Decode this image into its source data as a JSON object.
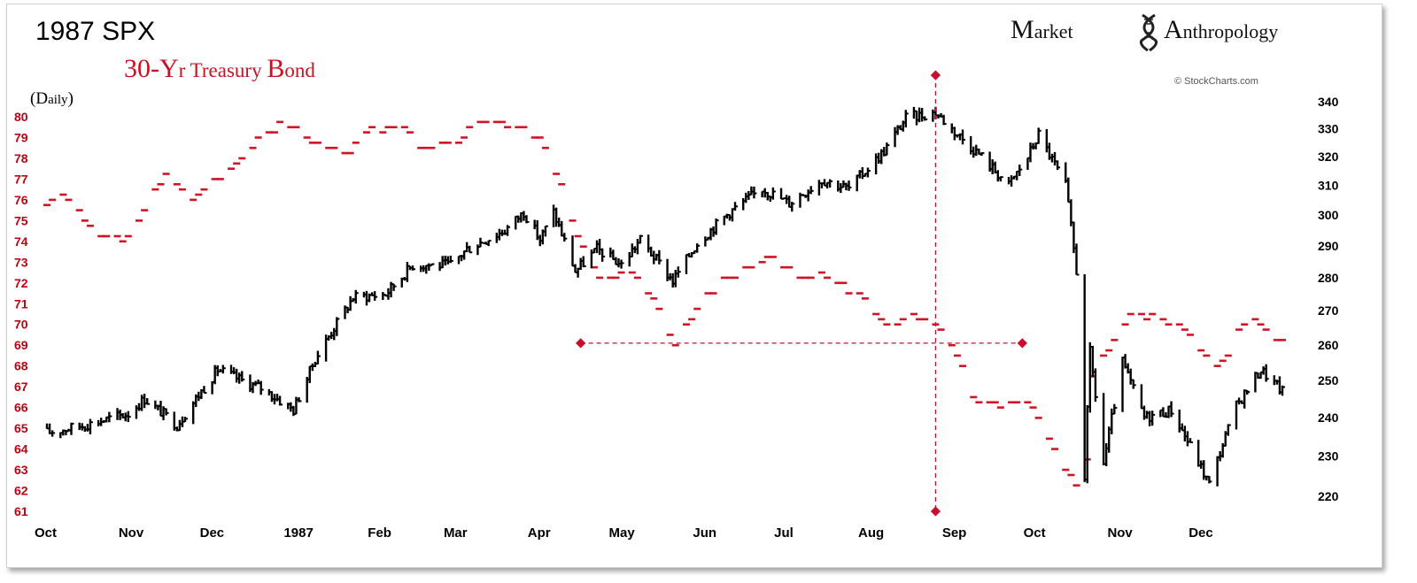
{
  "header": {
    "title_spx": "1987 SPX",
    "title_bond_first": "30-Y",
    "title_bond_rest": "r T",
    "title_bond_rest2": "reasury ",
    "title_bond_b": "B",
    "title_bond_ond": "ond",
    "daily_open": "(D",
    "daily_rest": "aily",
    "daily_close": ")"
  },
  "brand": {
    "m": "M",
    "arket": "arket",
    "a": "A",
    "nthropology": "nthropology",
    "logo_icon": "dna-helix-icon",
    "credit": "© StockCharts.com"
  },
  "colors": {
    "spx": "#000000",
    "bond": "#d01426",
    "guide": "#c8102e",
    "left_axis": "#c00010"
  },
  "chart_data": {
    "type": "line",
    "x_ticks": [
      "Oct",
      "Nov",
      "Dec",
      "1987",
      "Feb",
      "Mar",
      "Apr",
      "May",
      "Jun",
      "Jul",
      "Aug",
      "Sep",
      "Oct",
      "Nov",
      "Dec"
    ],
    "x_range": [
      "1986-10-01",
      "1987-12-31"
    ],
    "y_left": {
      "label": "30-Yr Treasury Bond",
      "range": [
        61,
        80
      ],
      "ticks": [
        80,
        79,
        78,
        77,
        76,
        75,
        74,
        73,
        72,
        71,
        70,
        69,
        68,
        67,
        66,
        65,
        64,
        63,
        62,
        61
      ]
    },
    "y_right": {
      "label": "1987 SPX",
      "scale": "log",
      "range": [
        216,
        342
      ],
      "ticks": [
        340,
        330,
        320,
        310,
        300,
        290,
        280,
        270,
        260,
        250,
        240,
        230,
        220
      ]
    },
    "series": [
      {
        "name": "1987 SPX",
        "axis": "right",
        "style": "daily-bars",
        "points": [
          [
            "1986-10-01",
            236
          ],
          [
            "1986-10-15",
            238
          ],
          [
            "1986-10-31",
            241
          ],
          [
            "1986-11-06",
            245
          ],
          [
            "1986-11-18",
            238
          ],
          [
            "1986-11-28",
            248
          ],
          [
            "1986-12-03",
            253
          ],
          [
            "1986-12-15",
            249
          ],
          [
            "1986-12-19",
            248
          ],
          [
            "1986-12-31",
            242
          ],
          [
            "1987-01-08",
            256
          ],
          [
            "1987-01-22",
            274
          ],
          [
            "1987-02-03",
            275
          ],
          [
            "1987-02-13",
            284
          ],
          [
            "1987-02-27",
            284
          ],
          [
            "1987-03-05",
            289
          ],
          [
            "1987-03-19",
            295
          ],
          [
            "1987-03-26",
            301
          ],
          [
            "1987-04-01",
            292
          ],
          [
            "1987-04-06",
            301
          ],
          [
            "1987-04-14",
            282
          ],
          [
            "1987-04-22",
            289
          ],
          [
            "1987-05-01",
            284
          ],
          [
            "1987-05-08",
            292
          ],
          [
            "1987-05-20",
            279
          ],
          [
            "1987-05-29",
            291
          ],
          [
            "1987-06-10",
            301
          ],
          [
            "1987-06-22",
            309
          ],
          [
            "1987-07-02",
            304
          ],
          [
            "1987-07-14",
            312
          ],
          [
            "1987-07-24",
            309
          ],
          [
            "1987-08-06",
            322
          ],
          [
            "1987-08-14",
            334
          ],
          [
            "1987-08-25",
            336
          ],
          [
            "1987-09-01",
            329
          ],
          [
            "1987-09-10",
            321
          ],
          [
            "1987-09-21",
            310
          ],
          [
            "1987-09-28",
            320
          ],
          [
            "1987-10-02",
            328
          ],
          [
            "1987-10-12",
            310
          ],
          [
            "1987-10-16",
            282
          ],
          [
            "1987-10-19",
            225
          ],
          [
            "1987-10-21",
            258
          ],
          [
            "1987-10-26",
            228
          ],
          [
            "1987-11-02",
            255
          ],
          [
            "1987-11-10",
            240
          ],
          [
            "1987-11-20",
            242
          ],
          [
            "1987-12-04",
            223
          ],
          [
            "1987-12-14",
            243
          ],
          [
            "1987-12-23",
            253
          ],
          [
            "1987-12-31",
            247
          ]
        ]
      },
      {
        "name": "30-Yr Treasury Bond",
        "axis": "left",
        "style": "daily-ticks",
        "points": [
          [
            "1986-10-01",
            75.8
          ],
          [
            "1986-10-08",
            76.3
          ],
          [
            "1986-10-20",
            74.5
          ],
          [
            "1986-10-28",
            74.0
          ],
          [
            "1986-11-06",
            75.4
          ],
          [
            "1986-11-14",
            77.3
          ],
          [
            "1986-11-24",
            76.0
          ],
          [
            "1986-12-04",
            77.0
          ],
          [
            "1986-12-15",
            78.4
          ],
          [
            "1986-12-26",
            79.7
          ],
          [
            "1987-01-08",
            78.8
          ],
          [
            "1987-01-19",
            78.1
          ],
          [
            "1987-01-28",
            79.3
          ],
          [
            "1987-02-09",
            79.6
          ],
          [
            "1987-02-19",
            78.4
          ],
          [
            "1987-03-02",
            78.9
          ],
          [
            "1987-03-12",
            79.7
          ],
          [
            "1987-03-25",
            79.7
          ],
          [
            "1987-04-01",
            78.9
          ],
          [
            "1987-04-08",
            77.0
          ],
          [
            "1987-04-15",
            74.2
          ],
          [
            "1987-04-24",
            71.9
          ],
          [
            "1987-05-05",
            72.6
          ],
          [
            "1987-05-13",
            71.3
          ],
          [
            "1987-05-20",
            69.0
          ],
          [
            "1987-06-01",
            71.4
          ],
          [
            "1987-06-12",
            72.3
          ],
          [
            "1987-06-24",
            73.4
          ],
          [
            "1987-07-06",
            72.4
          ],
          [
            "1987-07-17",
            72.3
          ],
          [
            "1987-07-27",
            71.4
          ],
          [
            "1987-08-06",
            70.0
          ],
          [
            "1987-08-17",
            70.5
          ],
          [
            "1987-08-26",
            70.0
          ],
          [
            "1987-09-01",
            68.9
          ],
          [
            "1987-09-07",
            66.8
          ],
          [
            "1987-09-16",
            66.0
          ],
          [
            "1987-09-28",
            66.5
          ],
          [
            "1987-10-05",
            64.9
          ],
          [
            "1987-10-12",
            63.2
          ],
          [
            "1987-10-19",
            61.2
          ],
          [
            "1987-10-22",
            67.5
          ],
          [
            "1987-10-30",
            69.0
          ],
          [
            "1987-11-06",
            70.7
          ],
          [
            "1987-11-13",
            70.4
          ],
          [
            "1987-11-24",
            69.8
          ],
          [
            "1987-12-02",
            68.6
          ],
          [
            "1987-12-09",
            68.1
          ],
          [
            "1987-12-18",
            70.3
          ],
          [
            "1987-12-31",
            69.3
          ]
        ]
      }
    ],
    "annotations": [
      {
        "kind": "vertical-dashed-line",
        "x": "1987-08-25",
        "y_left_span": [
          61,
          82
        ]
      },
      {
        "kind": "horizontal-dashed-line",
        "axis": "left",
        "y": 69.1,
        "x_span": [
          "1987-04-16",
          "1987-09-26"
        ]
      }
    ],
    "grid": false,
    "legend": "none"
  }
}
